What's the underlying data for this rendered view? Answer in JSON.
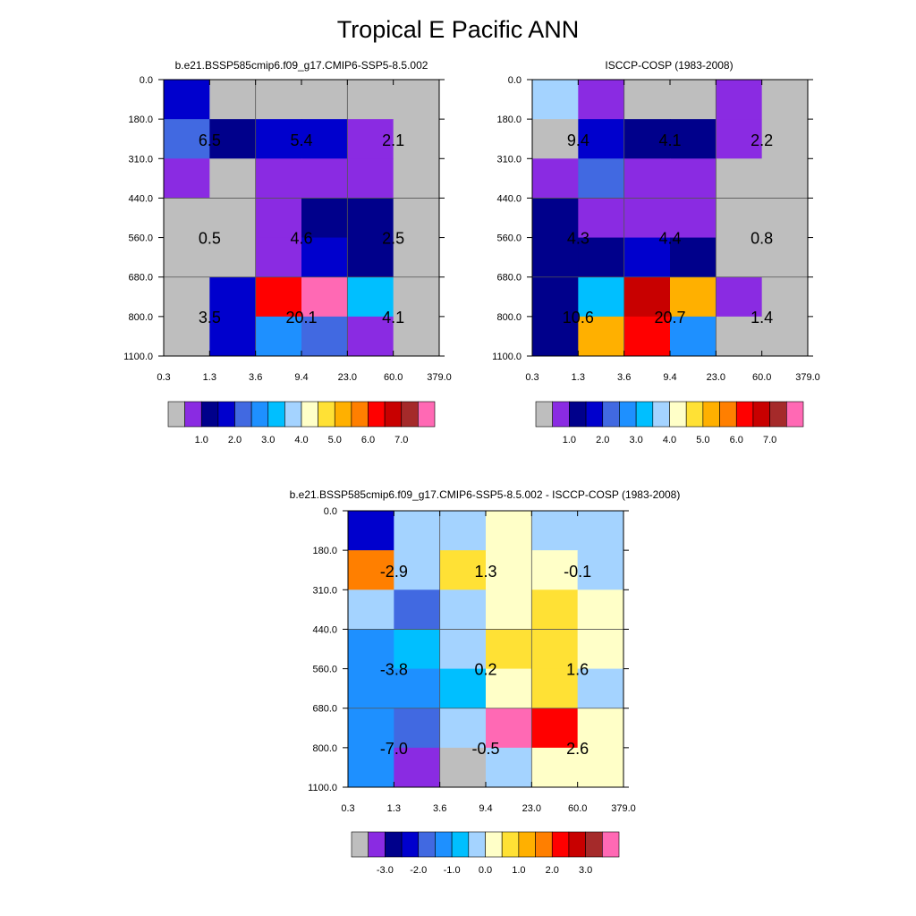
{
  "figure_title": "Tropical E Pacific ANN",
  "chart_data": [
    {
      "type": "heatmap",
      "title": "b.e21.BSSP585cmip6.f09_g17.CMIP6-SSP5-8.5.002",
      "x_bin_edges": [
        "0.3",
        "1.3",
        "3.6",
        "9.4",
        "23.0",
        "60.0",
        "379.0"
      ],
      "y_bin_edges": [
        "0.0",
        "180.0",
        "310.0",
        "440.0",
        "560.0",
        "680.0",
        "800.0",
        "1100.0"
      ],
      "cell_colors": [
        [
          "#0000CD",
          "#BEBEBE",
          "#BEBEBE",
          "#BEBEBE",
          "#BEBEBE",
          "#BEBEBE"
        ],
        [
          "#4169E1",
          "#00008B",
          "#0000CD",
          "#0000CD",
          "#8A2BE2",
          "#BEBEBE"
        ],
        [
          "#8A2BE2",
          "#BEBEBE",
          "#8A2BE2",
          "#8A2BE2",
          "#8A2BE2",
          "#BEBEBE"
        ],
        [
          "#BEBEBE",
          "#BEBEBE",
          "#8A2BE2",
          "#00008B",
          "#00008B",
          "#BEBEBE"
        ],
        [
          "#BEBEBE",
          "#BEBEBE",
          "#8A2BE2",
          "#0000CD",
          "#00008B",
          "#BEBEBE"
        ],
        [
          "#BEBEBE",
          "#0000CD",
          "#FF0000",
          "#FF69B4",
          "#00BFFF",
          "#BEBEBE"
        ],
        [
          "#BEBEBE",
          "#0000CD",
          "#1E90FF",
          "#4169E1",
          "#8A2BE2",
          "#BEBEBE"
        ]
      ],
      "box_values": [
        [
          "6.5",
          "5.4",
          "2.1"
        ],
        [
          "0.5",
          "4.6",
          "2.5"
        ],
        [
          "3.5",
          "20.1",
          "4.1"
        ]
      ],
      "colorbar": {
        "colors": [
          "#BEBEBE",
          "#8A2BE2",
          "#00008B",
          "#0000CD",
          "#4169E1",
          "#1E90FF",
          "#00BFFF",
          "#A4D3FF",
          "#FFFFC8",
          "#FFE135",
          "#FFB000",
          "#FF7F00",
          "#FF0000",
          "#C80000",
          "#A52A2A",
          "#FF69B4"
        ],
        "labels": [
          "1.0",
          "2.0",
          "3.0",
          "4.0",
          "5.0",
          "6.0",
          "7.0"
        ]
      }
    },
    {
      "type": "heatmap",
      "title": "ISCCP-COSP (1983-2008)",
      "x_bin_edges": [
        "0.3",
        "1.3",
        "3.6",
        "9.4",
        "23.0",
        "60.0",
        "379.0"
      ],
      "y_bin_edges": [
        "0.0",
        "180.0",
        "310.0",
        "440.0",
        "560.0",
        "680.0",
        "800.0",
        "1100.0"
      ],
      "cell_colors": [
        [
          "#A4D3FF",
          "#8A2BE2",
          "#BEBEBE",
          "#BEBEBE",
          "#8A2BE2",
          "#BEBEBE"
        ],
        [
          "#BEBEBE",
          "#0000CD",
          "#00008B",
          "#00008B",
          "#8A2BE2",
          "#BEBEBE"
        ],
        [
          "#8A2BE2",
          "#4169E1",
          "#8A2BE2",
          "#8A2BE2",
          "#BEBEBE",
          "#BEBEBE"
        ],
        [
          "#00008B",
          "#8A2BE2",
          "#8A2BE2",
          "#8A2BE2",
          "#BEBEBE",
          "#BEBEBE"
        ],
        [
          "#00008B",
          "#00008B",
          "#0000CD",
          "#00008B",
          "#BEBEBE",
          "#BEBEBE"
        ],
        [
          "#00008B",
          "#00BFFF",
          "#C80000",
          "#FFB000",
          "#8A2BE2",
          "#BEBEBE"
        ],
        [
          "#00008B",
          "#FFB000",
          "#FF0000",
          "#1E90FF",
          "#BEBEBE",
          "#BEBEBE"
        ]
      ],
      "box_values": [
        [
          "9.4",
          "4.1",
          "2.2"
        ],
        [
          "4.3",
          "4.4",
          "0.8"
        ],
        [
          "10.6",
          "20.7",
          "1.4"
        ]
      ],
      "colorbar": {
        "colors": [
          "#BEBEBE",
          "#8A2BE2",
          "#00008B",
          "#0000CD",
          "#4169E1",
          "#1E90FF",
          "#00BFFF",
          "#A4D3FF",
          "#FFFFC8",
          "#FFE135",
          "#FFB000",
          "#FF7F00",
          "#FF0000",
          "#C80000",
          "#A52A2A",
          "#FF69B4"
        ],
        "labels": [
          "1.0",
          "2.0",
          "3.0",
          "4.0",
          "5.0",
          "6.0",
          "7.0"
        ]
      }
    },
    {
      "type": "heatmap",
      "title": "b.e21.BSSP585cmip6.f09_g17.CMIP6-SSP5-8.5.002 - ISCCP-COSP (1983-2008)",
      "x_bin_edges": [
        "0.3",
        "1.3",
        "3.6",
        "9.4",
        "23.0",
        "60.0",
        "379.0"
      ],
      "y_bin_edges": [
        "0.0",
        "180.0",
        "310.0",
        "440.0",
        "560.0",
        "680.0",
        "800.0",
        "1100.0"
      ],
      "cell_colors": [
        [
          "#0000CD",
          "#A4D3FF",
          "#A4D3FF",
          "#FFFFC8",
          "#A4D3FF",
          "#A4D3FF"
        ],
        [
          "#FF7F00",
          "#A4D3FF",
          "#FFE135",
          "#FFFFC8",
          "#FFFFC8",
          "#A4D3FF"
        ],
        [
          "#A4D3FF",
          "#4169E1",
          "#A4D3FF",
          "#FFFFC8",
          "#FFE135",
          "#FFFFC8"
        ],
        [
          "#1E90FF",
          "#00BFFF",
          "#A4D3FF",
          "#FFE135",
          "#FFE135",
          "#FFFFC8"
        ],
        [
          "#1E90FF",
          "#1E90FF",
          "#00BFFF",
          "#FFFFC8",
          "#FFE135",
          "#A4D3FF"
        ],
        [
          "#1E90FF",
          "#4169E1",
          "#A4D3FF",
          "#FF69B4",
          "#FF0000",
          "#FFFFC8"
        ],
        [
          "#1E90FF",
          "#8A2BE2",
          "#BEBEBE",
          "#A4D3FF",
          "#FFFFC8",
          "#FFFFC8"
        ]
      ],
      "box_values": [
        [
          "-2.9",
          "1.3",
          "-0.1"
        ],
        [
          "-3.8",
          "0.2",
          "1.6"
        ],
        [
          "-7.0",
          "-0.5",
          "2.6"
        ]
      ],
      "colorbar": {
        "colors": [
          "#BEBEBE",
          "#8A2BE2",
          "#00008B",
          "#0000CD",
          "#4169E1",
          "#1E90FF",
          "#00BFFF",
          "#A4D3FF",
          "#FFFFC8",
          "#FFE135",
          "#FFB000",
          "#FF7F00",
          "#FF0000",
          "#C80000",
          "#A52A2A",
          "#FF69B4"
        ],
        "labels": [
          "-3.0",
          "-2.0",
          "-1.0",
          "0.0",
          "1.0",
          "2.0",
          "3.0"
        ]
      }
    }
  ]
}
